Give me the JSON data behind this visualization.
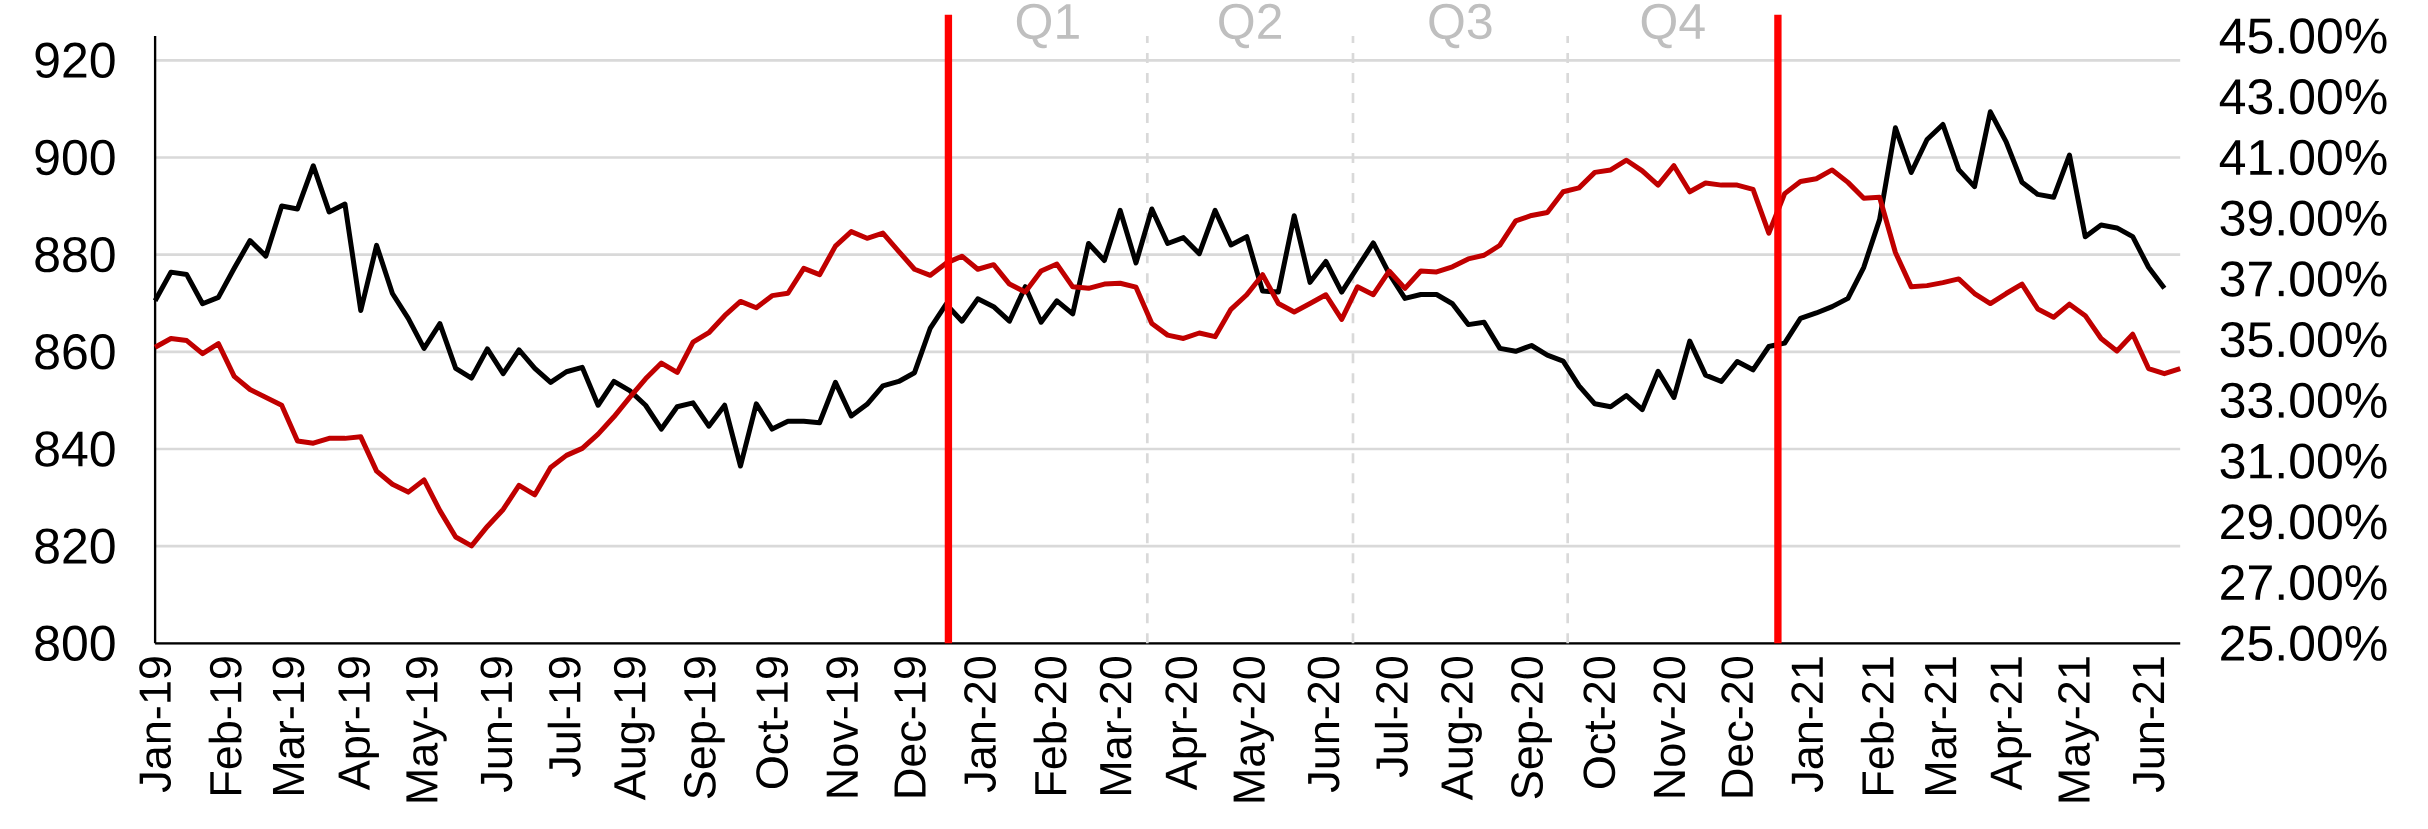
{
  "chart_data": {
    "type": "line",
    "x": [
      "2019-01-01",
      "2019-01-08",
      "2019-01-15",
      "2019-01-22",
      "2019-01-29",
      "2019-02-05",
      "2019-02-12",
      "2019-02-19",
      "2019-02-26",
      "2019-03-05",
      "2019-03-12",
      "2019-03-19",
      "2019-03-26",
      "2019-04-02",
      "2019-04-09",
      "2019-04-16",
      "2019-04-23",
      "2019-04-30",
      "2019-05-07",
      "2019-05-14",
      "2019-05-21",
      "2019-05-28",
      "2019-06-04",
      "2019-06-11",
      "2019-06-18",
      "2019-06-25",
      "2019-07-02",
      "2019-07-09",
      "2019-07-16",
      "2019-07-23",
      "2019-07-30",
      "2019-08-06",
      "2019-08-13",
      "2019-08-20",
      "2019-08-27",
      "2019-09-03",
      "2019-09-10",
      "2019-09-17",
      "2019-09-24",
      "2019-10-01",
      "2019-10-08",
      "2019-10-15",
      "2019-10-22",
      "2019-10-29",
      "2019-11-05",
      "2019-11-12",
      "2019-11-19",
      "2019-11-26",
      "2019-12-03",
      "2019-12-10",
      "2019-12-17",
      "2019-12-24",
      "2019-12-31",
      "2020-01-07",
      "2020-01-14",
      "2020-01-21",
      "2020-01-28",
      "2020-02-04",
      "2020-02-11",
      "2020-02-18",
      "2020-02-25",
      "2020-03-03",
      "2020-03-10",
      "2020-03-17",
      "2020-03-24",
      "2020-03-31",
      "2020-04-07",
      "2020-04-14",
      "2020-04-21",
      "2020-04-28",
      "2020-05-05",
      "2020-05-12",
      "2020-05-19",
      "2020-05-26",
      "2020-06-02",
      "2020-06-09",
      "2020-06-16",
      "2020-06-23",
      "2020-06-30",
      "2020-07-07",
      "2020-07-14",
      "2020-07-21",
      "2020-07-28",
      "2020-08-04",
      "2020-08-11",
      "2020-08-18",
      "2020-08-25",
      "2020-09-01",
      "2020-09-08",
      "2020-09-15",
      "2020-09-22",
      "2020-09-29",
      "2020-10-06",
      "2020-10-13",
      "2020-10-20",
      "2020-10-27",
      "2020-11-03",
      "2020-11-10",
      "2020-11-17",
      "2020-11-24",
      "2020-12-01",
      "2020-12-08",
      "2020-12-15",
      "2020-12-22",
      "2020-12-29",
      "2021-01-05",
      "2021-01-12",
      "2021-01-19",
      "2021-01-26",
      "2021-02-02",
      "2021-02-09",
      "2021-02-16",
      "2021-02-23",
      "2021-03-02",
      "2021-03-09",
      "2021-03-16",
      "2021-03-23",
      "2021-03-30",
      "2021-04-06",
      "2021-04-13",
      "2021-04-20",
      "2021-04-27",
      "2021-05-04",
      "2021-05-11",
      "2021-05-18",
      "2021-05-25",
      "2021-06-01",
      "2021-06-08",
      "2021-06-15"
    ],
    "series": [
      {
        "color": "#000000",
        "values": [
          870.5,
          876.4,
          875.9,
          869.9,
          871.2,
          877.2,
          882.9,
          879.7,
          890.0,
          889.4,
          898.3,
          888.8,
          890.4,
          868.5,
          881.9,
          872.0,
          866.9,
          860.7,
          865.8,
          856.6,
          854.6,
          860.6,
          855.5,
          860.4,
          856.6,
          853.7,
          855.9,
          856.8,
          849.0,
          853.9,
          852.0,
          849.0,
          844.1,
          848.7,
          849.5,
          844.7,
          849.0,
          836.5,
          849.3,
          844.1,
          845.7,
          845.7,
          845.4,
          853.7,
          846.8,
          849.2,
          853.0,
          853.9,
          855.7,
          864.9,
          869.8,
          866.3,
          870.9,
          869.3,
          866.3,
          873.4,
          866.1,
          870.5,
          867.8,
          882.3,
          878.8,
          889.1,
          878.3,
          889.4,
          882.3,
          883.5,
          880.2,
          889.1,
          882.0,
          883.7,
          872.5,
          872.3,
          888.0,
          874.3,
          878.6,
          872.3,
          877.4,
          882.4,
          876.1,
          871.0,
          871.8,
          871.8,
          869.9,
          865.6,
          866.1,
          860.7,
          860.1,
          861.3,
          859.3,
          858.1,
          853.0,
          849.3,
          848.7,
          851.0,
          848.1,
          856.0,
          850.6,
          862.2,
          855.2,
          853.9,
          858.0,
          856.3,
          861.1,
          861.8,
          866.9,
          868.0,
          869.3,
          871.0,
          877.4,
          887.2,
          906.1,
          896.9,
          903.7,
          906.8,
          897.5,
          894.0,
          909.4,
          903.2,
          894.9,
          892.4,
          891.8,
          900.5,
          883.7,
          886.1,
          885.5,
          883.7,
          877.4,
          873.1,
          null
        ]
      },
      {
        "color": "#c00000",
        "axis": "y2",
        "values": [
          34.75,
          35.04,
          34.97,
          34.54,
          34.87,
          33.79,
          33.36,
          33.1,
          32.84,
          31.66,
          31.59,
          31.75,
          31.75,
          31.8,
          30.67,
          30.24,
          29.98,
          30.38,
          29.37,
          28.5,
          28.21,
          28.85,
          29.41,
          30.2,
          29.89,
          30.79,
          31.19,
          31.42,
          31.89,
          32.46,
          33.1,
          33.71,
          34.23,
          33.92,
          34.92,
          35.23,
          35.79,
          36.26,
          36.05,
          36.45,
          36.53,
          37.35,
          37.14,
          38.08,
          38.56,
          38.34,
          38.51,
          37.91,
          37.32,
          37.12,
          37.52,
          37.75,
          37.32,
          37.47,
          36.83,
          36.57,
          37.26,
          37.49,
          36.74,
          36.69,
          36.83,
          36.86,
          36.73,
          35.53,
          35.15,
          35.04,
          35.22,
          35.1,
          36.0,
          36.48,
          37.14,
          36.19,
          35.91,
          36.19,
          36.48,
          35.67,
          36.74,
          36.48,
          37.26,
          36.69,
          37.26,
          37.23,
          37.4,
          37.66,
          37.78,
          38.11,
          38.91,
          39.09,
          39.19,
          39.87,
          40.0,
          40.51,
          40.59,
          40.91,
          40.56,
          40.09,
          40.73,
          39.87,
          40.16,
          40.09,
          40.09,
          39.95,
          38.51,
          39.81,
          40.21,
          40.3,
          40.59,
          40.18,
          39.66,
          39.69,
          37.87,
          36.74,
          36.78,
          36.88,
          37.0,
          36.52,
          36.19,
          36.52,
          36.83,
          36.01,
          35.74,
          36.17,
          35.79,
          35.04,
          34.63,
          35.18,
          34.05,
          33.88,
          34.05
        ]
      }
    ],
    "xlim": [
      "2019-01-01",
      "2021-06-15"
    ],
    "xticks": [
      {
        "value": "2019-01-01",
        "label": "Jan-19"
      },
      {
        "value": "2019-02-01",
        "label": "Feb-19"
      },
      {
        "value": "2019-03-01",
        "label": "Mar-19"
      },
      {
        "value": "2019-04-01",
        "label": "Apr-19"
      },
      {
        "value": "2019-05-01",
        "label": "May-19"
      },
      {
        "value": "2019-06-01",
        "label": "Jun-19"
      },
      {
        "value": "2019-07-01",
        "label": "Jul-19"
      },
      {
        "value": "2019-08-01",
        "label": "Aug-19"
      },
      {
        "value": "2019-09-01",
        "label": "Sep-19"
      },
      {
        "value": "2019-10-01",
        "label": "Oct-19"
      },
      {
        "value": "2019-11-01",
        "label": "Nov-19"
      },
      {
        "value": "2019-12-01",
        "label": "Dec-19"
      },
      {
        "value": "2020-01-01",
        "label": "Jan-20"
      },
      {
        "value": "2020-02-01",
        "label": "Feb-20"
      },
      {
        "value": "2020-03-01",
        "label": "Mar-20"
      },
      {
        "value": "2020-04-01",
        "label": "Apr-20"
      },
      {
        "value": "2020-05-01",
        "label": "May-20"
      },
      {
        "value": "2020-06-01",
        "label": "Jun-20"
      },
      {
        "value": "2020-07-01",
        "label": "Jul-20"
      },
      {
        "value": "2020-08-01",
        "label": "Aug-20"
      },
      {
        "value": "2020-09-01",
        "label": "Sep-20"
      },
      {
        "value": "2020-10-01",
        "label": "Oct-20"
      },
      {
        "value": "2020-11-01",
        "label": "Nov-20"
      },
      {
        "value": "2020-12-01",
        "label": "Dec-20"
      },
      {
        "value": "2021-01-01",
        "label": "Jan-21"
      },
      {
        "value": "2021-02-01",
        "label": "Feb-21"
      },
      {
        "value": "2021-03-01",
        "label": "Mar-21"
      },
      {
        "value": "2021-04-01",
        "label": "Apr-21"
      },
      {
        "value": "2021-05-01",
        "label": "May-21"
      },
      {
        "value": "2021-06-01",
        "label": "Jun-21"
      }
    ],
    "ylim": [
      800,
      925
    ],
    "yticks": [
      800,
      820,
      840,
      860,
      880,
      900,
      920
    ],
    "y2lim": [
      25,
      45
    ],
    "y2ticks": [
      {
        "value": 25,
        "label": "25.00%"
      },
      {
        "value": 27,
        "label": "27.00%"
      },
      {
        "value": 29,
        "label": "29.00%"
      },
      {
        "value": 31,
        "label": "31.00%"
      },
      {
        "value": 33,
        "label": "33.00%"
      },
      {
        "value": 35,
        "label": "35.00%"
      },
      {
        "value": 37,
        "label": "37.00%"
      },
      {
        "value": 39,
        "label": "39.00%"
      },
      {
        "value": 41,
        "label": "41.00%"
      },
      {
        "value": 43,
        "label": "43.00%"
      },
      {
        "value": 45,
        "label": "45.00%"
      }
    ],
    "grid": "y",
    "ref_lines": [
      {
        "axis": "x",
        "value": "2019-12-18",
        "color": "#ff0000"
      },
      {
        "axis": "x",
        "value": "2020-12-19",
        "color": "#ff0000"
      },
      {
        "axis": "x",
        "value": "2020-03-15",
        "color": "#d9d9d9",
        "line_style": "dashed"
      },
      {
        "axis": "x",
        "value": "2020-06-14",
        "color": "#d9d9d9",
        "line_style": "dashed"
      },
      {
        "axis": "x",
        "value": "2020-09-17",
        "color": "#d9d9d9",
        "line_style": "dashed"
      }
    ],
    "annotations": [
      "Q1",
      "Q2",
      "Q3",
      "Q4"
    ]
  }
}
